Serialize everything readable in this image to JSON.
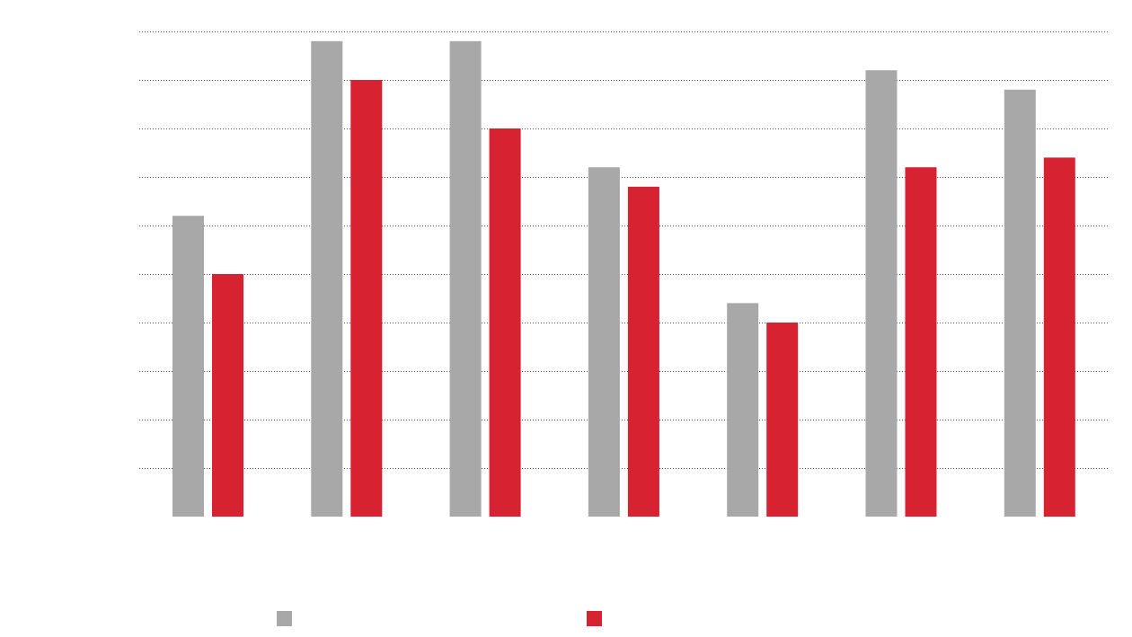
{
  "chart_data": {
    "type": "bar",
    "title": "",
    "xlabel": "",
    "ylabel": "",
    "categories": [
      "",
      "",
      "",
      "",
      "",
      "",
      ""
    ],
    "ylim": [
      0,
      10
    ],
    "ytick_values": [
      0,
      1,
      2,
      3,
      4,
      5,
      6,
      7,
      8,
      9,
      10
    ],
    "ytick_labels": [],
    "grid": true,
    "grid_style": "dotted",
    "legend_position": "bottom",
    "series": [
      {
        "color": "#a8a8a8",
        "values": [
          6.2,
          9.8,
          9.8,
          7.2,
          4.4,
          9.2,
          8.8
        ]
      },
      {
        "color": "#d62231",
        "values": [
          5.0,
          9.0,
          8.0,
          6.8,
          4.0,
          7.2,
          7.4
        ]
      }
    ]
  }
}
